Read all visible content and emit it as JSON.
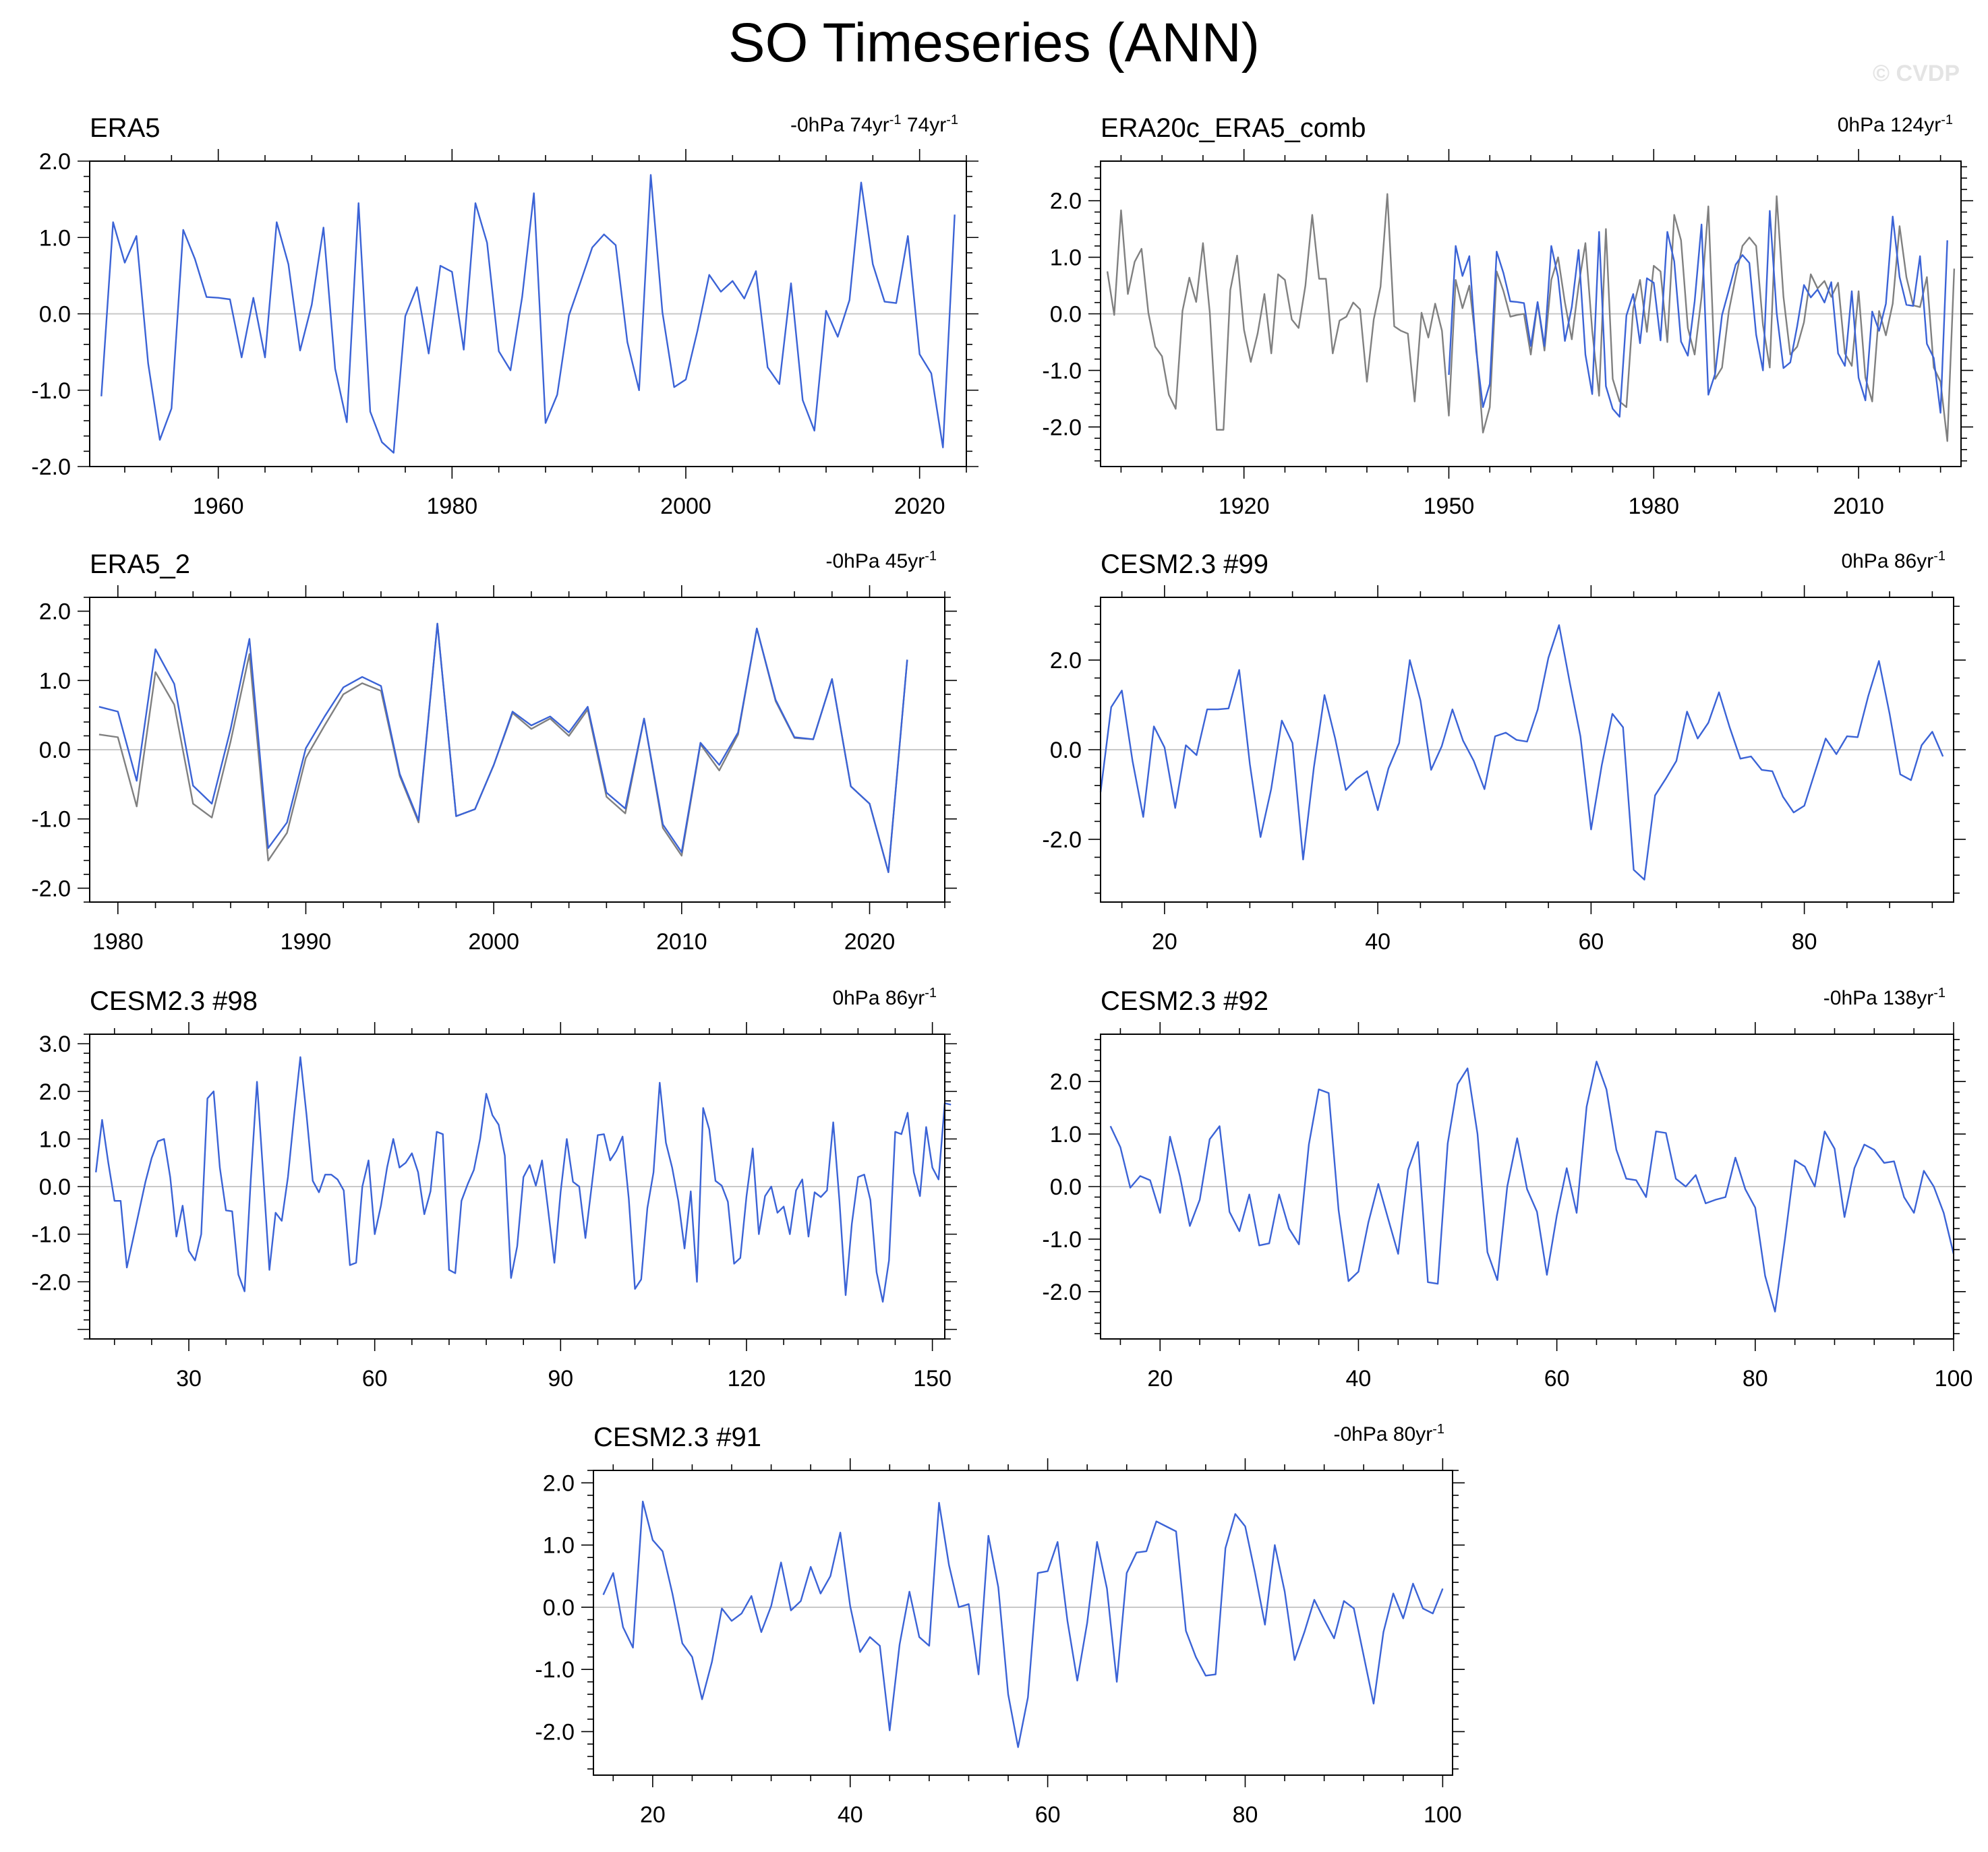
{
  "title": "SO Timeseries (ANN)",
  "watermark": "© CVDP",
  "colors": {
    "obs": "#3b63d6",
    "comparison": "#808080",
    "zero_line": "#c8c8c8"
  },
  "chart_data": [
    {
      "type": "line",
      "title": "ERA5",
      "stats": [
        "-0hPa 74yr",
        "-1",
        " 74yr",
        "-1"
      ],
      "xlim": [
        1949,
        2024
      ],
      "ylim": [
        -2.0,
        2.0
      ],
      "yticks": [
        "-2.0",
        "-1.0",
        "0.0",
        "1.0",
        "2.0"
      ],
      "xticks": [
        "1960",
        "1980",
        "2000",
        "2020"
      ],
      "series": [
        {
          "x0": 1950,
          "values": [
            -1.08,
            1.2,
            0.67,
            1.02,
            -0.65,
            -1.65,
            -1.24,
            1.1,
            0.72,
            0.22,
            0.21,
            0.19,
            -0.57,
            0.21,
            -0.57,
            1.2,
            0.65,
            -0.48,
            0.12,
            1.13,
            -0.72,
            -1.42,
            1.45,
            -1.28,
            -1.68,
            -1.82,
            -0.03,
            0.35,
            -0.52,
            0.63,
            0.55,
            -0.47,
            1.45,
            0.93,
            -0.49,
            -0.74,
            0.22,
            1.58,
            -1.43,
            -1.06,
            -0.02,
            0.42,
            0.87,
            1.04,
            0.9,
            -0.37,
            -1.0,
            1.82,
            0.02,
            -0.96,
            -0.86,
            -0.22,
            0.51,
            0.29,
            0.43,
            0.2,
            0.56,
            -0.7,
            -0.92,
            0.4,
            -1.13,
            -1.53,
            0.04,
            -0.3,
            0.18,
            1.72,
            0.65,
            0.16,
            0.14,
            1.02,
            -0.53,
            -0.78,
            -1.75,
            1.3
          ]
        }
      ]
    },
    {
      "type": "line",
      "title": "ERA20c_ERA5_comb",
      "stats": [
        "0hPa 124yr",
        "-1"
      ],
      "xlim": [
        1899,
        2025
      ],
      "ylim": [
        -2.7,
        2.7
      ],
      "yticks": [
        "-2.0",
        "-1.0",
        "0.0",
        "1.0",
        "2.0"
      ],
      "xticks": [
        "1920",
        "1950",
        "1980",
        "2010"
      ],
      "series": [
        {
          "x0": 1900,
          "values": [
            0.75,
            -0.02,
            1.83,
            0.35,
            0.92,
            1.15,
            0.02,
            -0.58,
            -0.75,
            -1.43,
            -1.68,
            0.05,
            0.64,
            0.21,
            1.25,
            0.02,
            -2.05,
            -2.05,
            0.42,
            1.03,
            -0.28,
            -0.85,
            -0.35,
            0.35,
            -0.7,
            0.7,
            0.6,
            -0.1,
            -0.25,
            0.5,
            1.75,
            0.62,
            0.62,
            -0.7,
            -0.12,
            -0.05,
            0.2,
            0.08,
            -1.2,
            -0.1,
            0.48,
            2.12,
            -0.22,
            -0.3,
            -0.35,
            -1.55,
            0.02,
            -0.42,
            0.18,
            -0.3,
            -1.8,
            0.6,
            0.1,
            0.5,
            -0.55,
            -2.1,
            -1.65,
            0.75,
            0.4,
            -0.05,
            -0.02,
            0.0,
            -0.72,
            0.2,
            -0.65,
            0.6,
            1.0,
            0.2,
            -0.45,
            0.5,
            1.25,
            -0.3,
            -1.45,
            1.5,
            -1.15,
            -1.55,
            -1.65,
            0.1,
            0.6,
            -0.32,
            0.85,
            0.75,
            -0.5,
            1.75,
            1.3,
            -0.25,
            -0.72,
            0.3,
            1.9,
            -1.15,
            -0.95,
            0.05,
            0.65,
            1.2,
            1.35,
            1.2,
            -0.2,
            -0.95,
            2.08,
            0.3,
            -0.72,
            -0.58,
            -0.15,
            0.7,
            0.45,
            0.58,
            0.3,
            0.55,
            -0.7,
            -0.92,
            0.4,
            -1.13,
            -1.55,
            0.05,
            -0.38,
            0.18,
            1.55,
            0.65,
            0.15,
            0.12,
            0.65,
            -0.95,
            -1.2,
            -2.25,
            0.8
          ]
        },
        {
          "x0": 1950,
          "values": [
            -1.08,
            1.2,
            0.67,
            1.02,
            -0.65,
            -1.65,
            -1.24,
            1.1,
            0.72,
            0.22,
            0.21,
            0.19,
            -0.57,
            0.21,
            -0.57,
            1.2,
            0.65,
            -0.48,
            0.12,
            1.13,
            -0.72,
            -1.42,
            1.45,
            -1.28,
            -1.68,
            -1.82,
            -0.03,
            0.35,
            -0.52,
            0.63,
            0.55,
            -0.47,
            1.45,
            0.93,
            -0.49,
            -0.74,
            0.22,
            1.58,
            -1.43,
            -1.06,
            -0.02,
            0.42,
            0.87,
            1.04,
            0.9,
            -0.37,
            -1.0,
            1.82,
            0.02,
            -0.96,
            -0.86,
            -0.22,
            0.51,
            0.29,
            0.43,
            0.2,
            0.56,
            -0.7,
            -0.92,
            0.4,
            -1.13,
            -1.53,
            0.04,
            -0.3,
            0.18,
            1.72,
            0.65,
            0.16,
            0.14,
            1.02,
            -0.53,
            -0.78,
            -1.75,
            1.3
          ]
        }
      ]
    },
    {
      "type": "line",
      "title": "ERA5_2",
      "stats": [
        "-0hPa 45yr",
        "-1"
      ],
      "xlim": [
        1978.5,
        2024
      ],
      "ylim": [
        -2.2,
        2.2
      ],
      "yticks": [
        "-2.0",
        "-1.0",
        "0.0",
        "1.0",
        "2.0"
      ],
      "xticks": [
        "1980",
        "1990",
        "2000",
        "2010",
        "2020"
      ],
      "series": [
        {
          "x0": 1979,
          "values": [
            0.22,
            0.18,
            -0.82,
            1.12,
            0.65,
            -0.78,
            -0.98,
            0.12,
            1.38,
            -1.6,
            -1.2,
            -0.12,
            0.35,
            0.8,
            0.96,
            0.85,
            -0.38,
            -1.05,
            1.82,
            -0.96,
            -0.86,
            -0.22,
            0.53,
            0.3,
            0.45,
            0.2,
            0.58,
            -0.68,
            -0.92,
            0.45,
            -1.13,
            -1.53,
            0.08,
            -0.3,
            0.22,
            1.75,
            0.7,
            0.17,
            0.15,
            1.02,
            -0.53,
            -0.78,
            -1.77,
            1.3
          ]
        },
        {
          "x0": 1979,
          "values": [
            0.62,
            0.55,
            -0.45,
            1.45,
            0.95,
            -0.52,
            -0.78,
            0.3,
            1.6,
            -1.42,
            -1.05,
            0.02,
            0.48,
            0.9,
            1.05,
            0.92,
            -0.35,
            -1.02,
            1.82,
            -0.96,
            -0.86,
            -0.22,
            0.55,
            0.35,
            0.48,
            0.25,
            0.62,
            -0.62,
            -0.85,
            0.45,
            -1.08,
            -1.48,
            0.1,
            -0.22,
            0.25,
            1.75,
            0.72,
            0.18,
            0.15,
            1.02,
            -0.53,
            -0.78,
            -1.77,
            1.3
          ]
        }
      ]
    },
    {
      "type": "line",
      "title": "CESM2.3 #99",
      "stats": [
        "0hPa 86yr",
        "-1"
      ],
      "xlim": [
        14,
        94
      ],
      "ylim": [
        -3.4,
        3.4
      ],
      "yticks": [
        "-2.0",
        "0.0",
        "2.0"
      ],
      "xticks": [
        "20",
        "40",
        "60",
        "80"
      ],
      "series": [
        {
          "x0": 14,
          "values": [
            -0.95,
            0.95,
            1.32,
            -0.25,
            -1.5,
            0.52,
            0.05,
            -1.3,
            0.1,
            -0.12,
            0.9,
            0.9,
            0.92,
            1.78,
            -0.32,
            -1.95,
            -0.88,
            0.65,
            0.15,
            -2.45,
            -0.4,
            1.22,
            0.25,
            -0.9,
            -0.65,
            -0.48,
            -1.35,
            -0.42,
            0.15,
            2.0,
            1.1,
            -0.45,
            0.08,
            0.9,
            0.2,
            -0.25,
            -0.88,
            0.3,
            0.38,
            0.22,
            0.18,
            0.9,
            2.05,
            2.78,
            1.5,
            0.3,
            -1.78,
            -0.35,
            0.8,
            0.5,
            -2.68,
            -2.9,
            -1.02,
            -0.65,
            -0.25,
            0.85,
            0.25,
            0.6,
            1.28,
            0.5,
            -0.2,
            -0.15,
            -0.45,
            -0.48,
            -1.05,
            -1.4,
            -1.25,
            -0.5,
            0.25,
            -0.1,
            0.3,
            0.28,
            1.2,
            1.98,
            0.8,
            -0.55,
            -0.68,
            0.1,
            0.4,
            -0.15
          ]
        }
      ]
    },
    {
      "type": "line",
      "title": "CESM2.3 #98",
      "stats": [
        "0hPa 86yr",
        "-1"
      ],
      "xlim": [
        14,
        152
      ],
      "ylim": [
        -3.2,
        3.2
      ],
      "yticks": [
        "-2.0",
        "-1.0",
        "0.0",
        "1.0",
        "2.0",
        "3.0"
      ],
      "xticks": [
        "30",
        "60",
        "90",
        "120",
        "150"
      ],
      "series": [
        {
          "x0": 15,
          "values": [
            0.3,
            1.4,
            0.5,
            -0.3,
            -0.3,
            -1.7,
            -1.1,
            -0.5,
            0.1,
            0.6,
            0.95,
            1.0,
            0.2,
            -1.05,
            -0.4,
            -1.35,
            -1.55,
            -1.0,
            1.85,
            2.0,
            0.4,
            -0.5,
            -0.52,
            -1.85,
            -2.2,
            0.15,
            2.2,
            0.25,
            -1.75,
            -0.55,
            -0.72,
            0.2,
            1.5,
            2.72,
            1.5,
            0.12,
            -0.12,
            0.25,
            0.25,
            0.15,
            -0.08,
            -1.65,
            -1.6,
            0.0,
            0.55,
            -1.0,
            -0.4,
            0.4,
            1.0,
            0.4,
            0.5,
            0.7,
            0.3,
            -0.58,
            -0.1,
            1.15,
            1.1,
            -1.75,
            -1.82,
            -0.3,
            0.05,
            0.35,
            1.0,
            1.95,
            1.5,
            1.3,
            0.65,
            -1.92,
            -1.25,
            0.2,
            0.45,
            0.02,
            0.55,
            -0.5,
            -1.6,
            -0.12,
            1.0,
            0.1,
            0.0,
            -1.08,
            0.0,
            1.08,
            1.1,
            0.55,
            0.75,
            1.05,
            -0.25,
            -2.15,
            -1.95,
            -0.45,
            0.3,
            2.18,
            0.92,
            0.4,
            -0.3,
            -1.3,
            -0.1,
            -2.0,
            1.65,
            1.2,
            0.12,
            0.02,
            -0.32,
            -1.62,
            -1.5,
            -0.2,
            0.8,
            -1.0,
            -0.2,
            0.0,
            -0.55,
            -0.42,
            -1.0,
            -0.08,
            0.15,
            -1.05,
            -0.12,
            -0.22,
            -0.08,
            1.35,
            -0.3,
            -2.28,
            -0.78,
            0.2,
            0.25,
            -0.28,
            -1.8,
            -2.42,
            -1.55,
            1.15,
            1.1,
            1.55,
            0.3,
            -0.2,
            1.25,
            0.4,
            0.15,
            1.75,
            1.72
          ]
        }
      ]
    },
    {
      "type": "line",
      "title": "CESM2.3 #92",
      "stats": [
        "-0hPa 138yr",
        "-1"
      ],
      "xlim": [
        14,
        100
      ],
      "ylim": [
        -2.9,
        2.9
      ],
      "yticks": [
        "-2.0",
        "-1.0",
        "0.0",
        "1.0",
        "2.0"
      ],
      "xticks": [
        "20",
        "40",
        "60",
        "80",
        "100"
      ],
      "series": [
        {
          "x0": 15,
          "values": [
            1.15,
            0.75,
            -0.02,
            0.2,
            0.12,
            -0.5,
            0.95,
            0.2,
            -0.75,
            -0.25,
            0.9,
            1.15,
            -0.48,
            -0.85,
            -0.15,
            -1.12,
            -1.08,
            -0.15,
            -0.8,
            -1.1,
            0.8,
            1.85,
            1.78,
            -0.45,
            -1.8,
            -1.62,
            -0.68,
            0.05,
            -0.62,
            -1.28,
            0.32,
            0.85,
            -1.82,
            -1.85,
            0.82,
            1.95,
            2.25,
            1.0,
            -1.25,
            -1.78,
            0.0,
            0.92,
            -0.05,
            -0.48,
            -1.68,
            -0.55,
            0.35,
            -0.5,
            1.52,
            2.38,
            1.85,
            0.7,
            0.15,
            0.12,
            -0.2,
            1.05,
            1.02,
            0.15,
            0.0,
            0.22,
            -0.32,
            -0.25,
            -0.2,
            0.55,
            -0.05,
            -0.4,
            -1.7,
            -2.38,
            -1.0,
            0.5,
            0.38,
            0.0,
            1.05,
            0.72,
            -0.58,
            0.35,
            0.8,
            0.7,
            0.45,
            0.48,
            -0.2,
            -0.5,
            0.3,
            0.0,
            -0.5,
            -1.28
          ]
        }
      ]
    },
    {
      "type": "line",
      "title": "CESM2.3 #91",
      "stats": [
        "-0hPa 80yr",
        "-1"
      ],
      "xlim": [
        14,
        101
      ],
      "ylim": [
        -2.7,
        2.2
      ],
      "yticks": [
        "-2.0",
        "-1.0",
        "0.0",
        "1.0",
        "2.0"
      ],
      "xticks": [
        "20",
        "40",
        "60",
        "80",
        "100"
      ],
      "series": [
        {
          "x0": 15,
          "values": [
            0.2,
            0.55,
            -0.32,
            -0.65,
            1.7,
            1.08,
            0.9,
            0.22,
            -0.58,
            -0.8,
            -1.48,
            -0.88,
            -0.02,
            -0.22,
            -0.1,
            0.18,
            -0.4,
            0.02,
            0.72,
            -0.05,
            0.1,
            0.65,
            0.22,
            0.5,
            1.2,
            0.02,
            -0.72,
            -0.48,
            -0.62,
            -1.98,
            -0.6,
            0.25,
            -0.48,
            -0.62,
            1.68,
            0.68,
            0.0,
            0.05,
            -1.08,
            1.15,
            0.32,
            -1.4,
            -2.25,
            -1.45,
            0.55,
            0.58,
            1.05,
            -0.22,
            -1.18,
            -0.25,
            1.05,
            0.3,
            -1.2,
            0.55,
            0.88,
            0.9,
            1.38,
            1.3,
            1.22,
            -0.38,
            -0.8,
            -1.1,
            -1.08,
            0.95,
            1.5,
            1.3,
            0.55,
            -0.28,
            1.0,
            0.25,
            -0.85,
            -0.4,
            0.12,
            -0.2,
            -0.5,
            0.1,
            -0.02,
            -0.78,
            -1.55,
            -0.4,
            0.22,
            -0.18,
            0.38,
            -0.02,
            -0.1,
            0.3
          ]
        }
      ]
    }
  ]
}
